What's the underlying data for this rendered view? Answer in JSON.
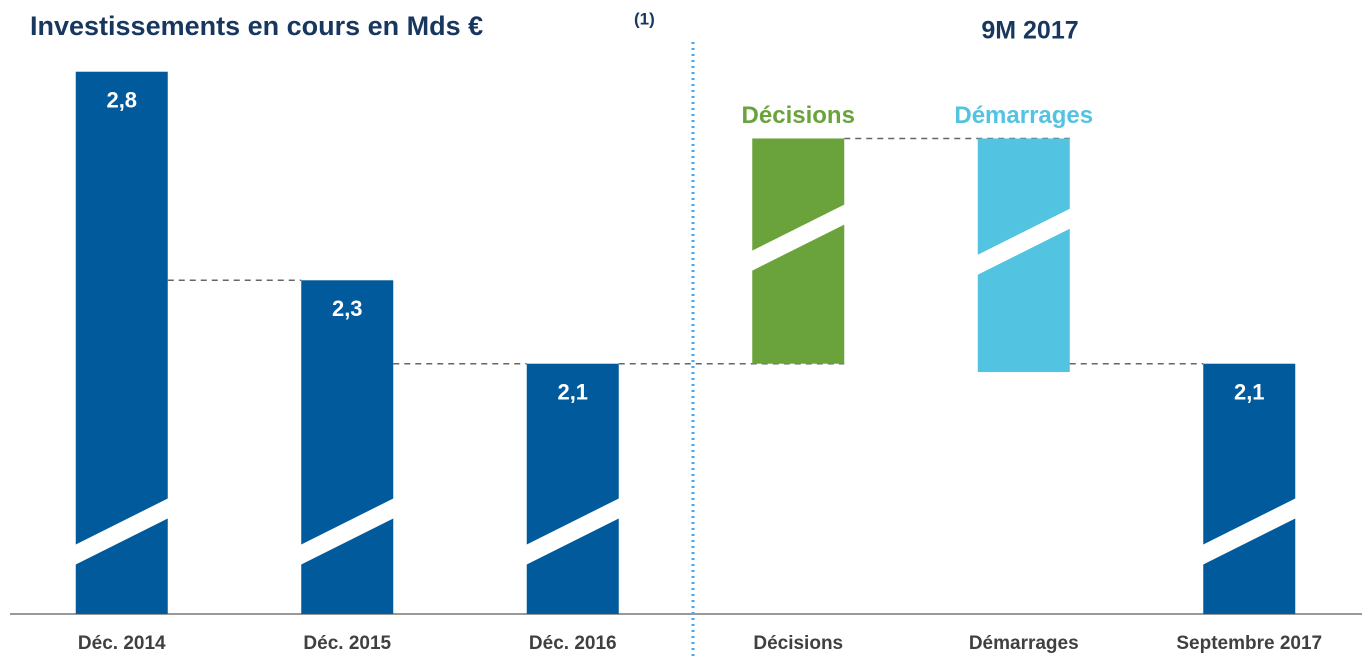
{
  "chart_data": {
    "type": "waterfall",
    "title": "Investissements en cours en Mds €",
    "title_note": "(1)",
    "subtitle": "9M 2017",
    "categories": [
      "Déc. 2014",
      "Déc. 2015",
      "Déc. 2016",
      "Décisions",
      "Démarrages",
      "Septembre 2017"
    ],
    "values": [
      2.8,
      2.3,
      2.1,
      0.54,
      -0.56,
      2.1
    ],
    "value_labels": [
      "2,8",
      "2,3",
      "2,1",
      null,
      null,
      "2,1"
    ],
    "measure": [
      "absolute",
      "absolute",
      "absolute",
      "relative",
      "relative",
      "absolute"
    ],
    "colors": [
      "#005a9c",
      "#005a9c",
      "#005a9c",
      "#6aa33c",
      "#52c3e0",
      "#005a9c"
    ],
    "ylim": [
      1.5,
      2.9
    ],
    "axis_break": true
  }
}
